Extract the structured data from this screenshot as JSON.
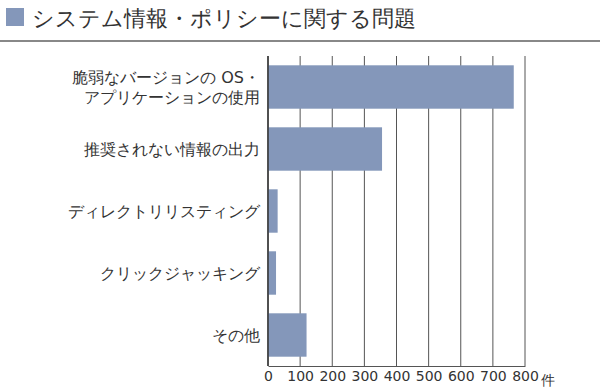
{
  "chart_data": {
    "type": "bar",
    "orientation": "horizontal",
    "title": "システム情報・ポリシーに関する問題",
    "categories": [
      "脆弱なバージョンの OS・\nアプリケーションの使用",
      "推奨されない情報の出力",
      "ディレクトリリスティング",
      "クリックジャッキング",
      "その他"
    ],
    "values": [
      765,
      355,
      30,
      25,
      120
    ],
    "color": "#8497ba",
    "x_label": "件",
    "xlim": [
      0,
      800
    ],
    "xticks": [
      0,
      100,
      200,
      300,
      400,
      500,
      600,
      700,
      800
    ],
    "grid": true
  }
}
